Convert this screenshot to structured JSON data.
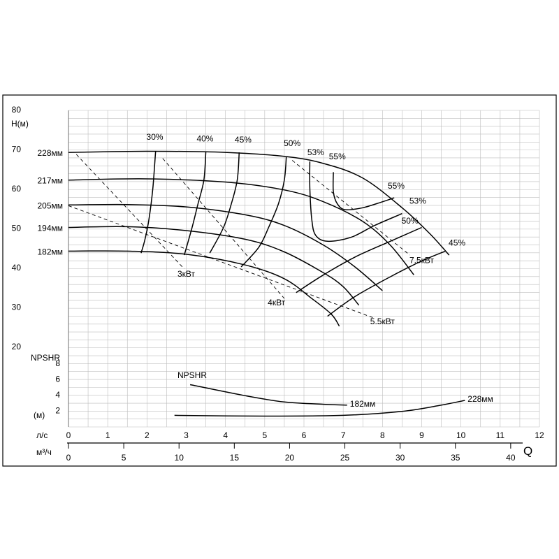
{
  "chart_data": {
    "type": "line",
    "title": "",
    "grid": true,
    "head_axis": {
      "label": "H(м)",
      "ticks": [
        80,
        70,
        60,
        50,
        40,
        30,
        20
      ],
      "range": [
        20,
        80
      ]
    },
    "npsh_axis": {
      "label": "NPSHR",
      "unit": "(м)",
      "ticks": [
        8,
        6,
        4,
        2
      ]
    },
    "flow_axes": {
      "ls_label": "л/с",
      "ls_ticks": [
        "0",
        "1",
        "2",
        "3",
        "4",
        "5",
        "6",
        "7",
        "8",
        "9",
        "10",
        "11",
        "12"
      ],
      "m3h_label": "м³/ч",
      "m3h_ticks": [
        "0",
        "5",
        "10",
        "15",
        "20",
        "25",
        "30",
        "35",
        "40"
      ],
      "q_label": "Q"
    },
    "impeller_curves": [
      {
        "name": "228мм",
        "points": [
          [
            0,
            69.0
          ],
          [
            2,
            69.3
          ],
          [
            4,
            69.0
          ],
          [
            5.5,
            68.0
          ],
          [
            6.5,
            66.2
          ],
          [
            7.5,
            62.5
          ],
          [
            8.5,
            55.0
          ],
          [
            9.2,
            48.5
          ],
          [
            9.7,
            43.0
          ]
        ]
      },
      {
        "name": "217мм",
        "points": [
          [
            0,
            62.0
          ],
          [
            2,
            62.3
          ],
          [
            4,
            61.5
          ],
          [
            5.5,
            59.5
          ],
          [
            6.5,
            56.5
          ],
          [
            7.5,
            51.5
          ],
          [
            8.2,
            45.5
          ],
          [
            8.8,
            38.0
          ]
        ]
      },
      {
        "name": "205мм",
        "points": [
          [
            0,
            55.7
          ],
          [
            1.5,
            55.8
          ],
          [
            3,
            55.2
          ],
          [
            4.5,
            53.2
          ],
          [
            5.5,
            50.5
          ],
          [
            6.5,
            45.5
          ],
          [
            7.3,
            40.0
          ],
          [
            8.0,
            34.0
          ]
        ]
      },
      {
        "name": "194мм",
        "points": [
          [
            0,
            50.0
          ],
          [
            1.5,
            50.2
          ],
          [
            3,
            49.2
          ],
          [
            4.5,
            47.0
          ],
          [
            5.5,
            43.8
          ],
          [
            6.5,
            38.5
          ],
          [
            7.0,
            35.0
          ],
          [
            7.4,
            30.3
          ]
        ]
      },
      {
        "name": "182мм",
        "points": [
          [
            0,
            44.0
          ],
          [
            1.5,
            44.0
          ],
          [
            3,
            43.2
          ],
          [
            4.5,
            40.5
          ],
          [
            5.5,
            37.0
          ],
          [
            6.2,
            32.0
          ],
          [
            6.7,
            28.0
          ],
          [
            6.9,
            25.0
          ]
        ]
      }
    ],
    "efficiency_curves": [
      {
        "label": "30%",
        "points": [
          [
            2.22,
            69.3
          ],
          [
            2.15,
            60.0
          ],
          [
            2.05,
            52.0
          ],
          [
            1.95,
            47.0
          ],
          [
            1.85,
            43.5
          ]
        ]
      },
      {
        "label": "40%",
        "points": [
          [
            3.5,
            69.2
          ],
          [
            3.45,
            62.0
          ],
          [
            3.3,
            56.0
          ],
          [
            3.15,
            50.0
          ],
          [
            2.95,
            43.0
          ]
        ]
      },
      {
        "label": "45%",
        "points": [
          [
            4.35,
            69.0
          ],
          [
            4.3,
            62.0
          ],
          [
            4.15,
            56.0
          ],
          [
            3.95,
            50.0
          ],
          [
            3.6,
            43.5
          ]
        ]
      },
      {
        "label": "50%",
        "points": [
          [
            5.55,
            67.8
          ],
          [
            5.5,
            62.0
          ],
          [
            5.35,
            56.0
          ],
          [
            5.1,
            50.0
          ],
          [
            4.85,
            45.0
          ],
          [
            4.4,
            40.0
          ]
        ]
      },
      {
        "label": "53%",
        "points": [
          [
            6.15,
            66.7
          ],
          [
            6.15,
            60.0
          ],
          [
            6.2,
            52.0
          ],
          [
            6.3,
            48.0
          ],
          [
            6.6,
            46.5
          ],
          [
            7.2,
            47.5
          ],
          [
            7.8,
            50.5
          ],
          [
            8.5,
            53.5
          ]
        ]
      },
      {
        "label": "55%",
        "points": [
          [
            6.75,
            64.0
          ],
          [
            6.75,
            59.0
          ],
          [
            6.85,
            56.0
          ],
          [
            7.05,
            54.5
          ],
          [
            7.5,
            55.0
          ],
          [
            8.0,
            56.5
          ],
          [
            8.3,
            57.5
          ]
        ]
      },
      {
        "label": "50%",
        "points": [
          [
            5.8,
            33.5
          ],
          [
            6.5,
            38.0
          ],
          [
            7.3,
            42.5
          ],
          [
            8.2,
            46.5
          ],
          [
            9.0,
            50.0
          ]
        ]
      },
      {
        "label": "45%",
        "points": [
          [
            6.6,
            27.5
          ],
          [
            7.3,
            32.5
          ],
          [
            8.2,
            37.5
          ],
          [
            9.0,
            41.5
          ],
          [
            9.6,
            44.0
          ]
        ]
      }
    ],
    "power_lines": [
      {
        "label": "3кВт",
        "from": [
          0.2,
          68.5
        ],
        "to": [
          2.95,
          39.5
        ]
      },
      {
        "label": "4кВт",
        "from": [
          2.4,
          67.5
        ],
        "to": [
          5.5,
          32.0
        ]
      },
      {
        "label": "5.5кВт",
        "from": [
          0,
          55.5
        ],
        "to": [
          7.8,
          27.0
        ]
      },
      {
        "label": "7.5кВт",
        "from": [
          5.7,
          67.0
        ],
        "to": [
          8.7,
          43.0
        ]
      }
    ],
    "npshr_curves": [
      {
        "name": "182мм",
        "points": [
          [
            3.1,
            5.2
          ],
          [
            4.5,
            3.8
          ],
          [
            5.5,
            3.0
          ],
          [
            6.5,
            2.7
          ],
          [
            7.1,
            2.6
          ]
        ]
      },
      {
        "name": "228мм",
        "points": [
          [
            2.7,
            1.3
          ],
          [
            5,
            1.2
          ],
          [
            7,
            1.3
          ],
          [
            8.5,
            1.8
          ],
          [
            9.5,
            2.6
          ],
          [
            10.1,
            3.2
          ]
        ]
      }
    ],
    "npshr_caption": "NPSHR"
  }
}
